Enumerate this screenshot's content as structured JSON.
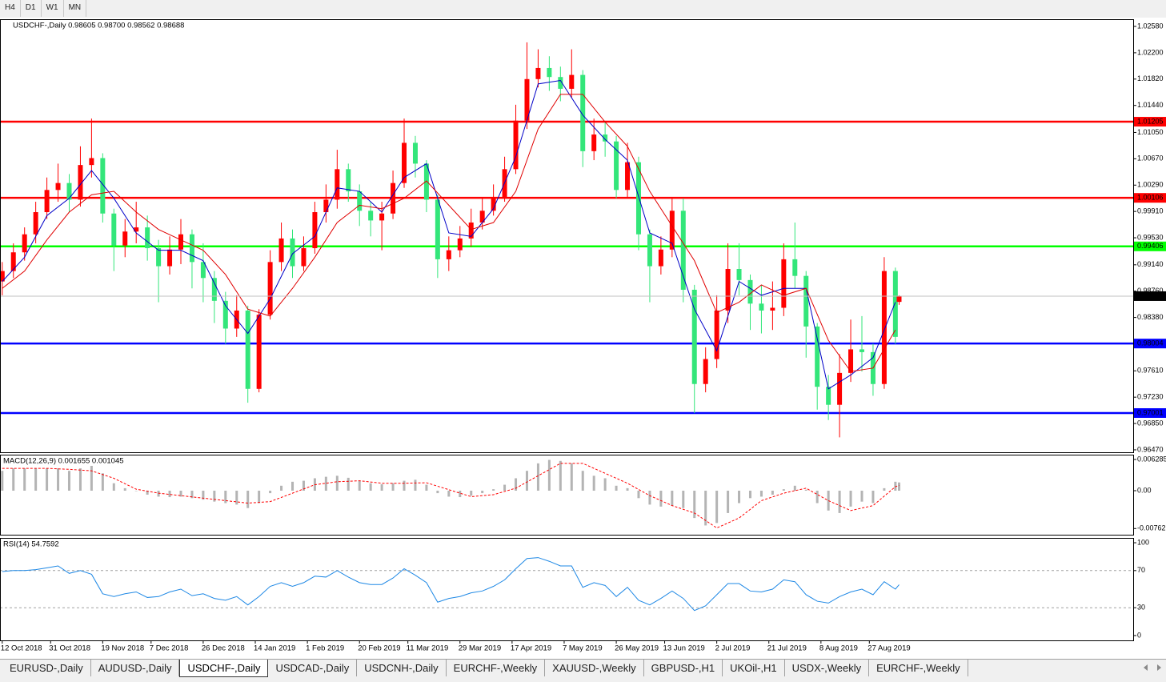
{
  "toolbar": [
    "H4",
    "D1",
    "W1",
    "MN"
  ],
  "tabs": [
    "EURUSD-,Daily",
    "AUDUSD-,Daily",
    "USDCHF-,Daily",
    "USDCAD-,Daily",
    "USDCNH-,Daily",
    "EURCHF-,Weekly",
    "XAUUSD-,Weekly",
    "GBPUSD-,H1",
    "UKOil-,H1",
    "USDX-,Weekly",
    "EURCHF-,Weekly"
  ],
  "active_tab": 2,
  "chart_data": [
    {
      "type": "candlestick",
      "title": "USDCHF-,Daily  0.98605 0.98700 0.98562 0.98688",
      "xlim": [
        -0.6,
        303.9
      ],
      "ylim": [
        0.96435,
        1.02684
      ],
      "yticks": [
        {
          "value": 1.0258,
          "label": "1.02580"
        },
        {
          "value": 1.022,
          "label": "1.02200"
        },
        {
          "value": 1.0182,
          "label": "1.01820"
        },
        {
          "value": 1.0144,
          "label": "1.01440"
        },
        {
          "value": 1.0105,
          "label": "1.01050"
        },
        {
          "value": 1.0067,
          "label": "1.00670"
        },
        {
          "value": 1.0029,
          "label": "1.00290"
        },
        {
          "value": 0.9991,
          "label": "0.99910"
        },
        {
          "value": 0.9953,
          "label": "0.99530"
        },
        {
          "value": 0.9914,
          "label": "0.99140"
        },
        {
          "value": 0.9876,
          "label": "0.98760"
        },
        {
          "value": 0.9838,
          "label": "0.98380"
        },
        {
          "value": 0.9761,
          "label": "0.97610"
        },
        {
          "value": 0.9723,
          "label": "0.97230"
        },
        {
          "value": 0.9685,
          "label": "0.96850"
        },
        {
          "value": 0.9647,
          "label": "0.96470"
        }
      ],
      "up_color": "#ff0000",
      "down_color": "#33e67a",
      "x": [
        0,
        3,
        6,
        9,
        12,
        15,
        18,
        21,
        24,
        27,
        30,
        33,
        36,
        39,
        42,
        45,
        48,
        51,
        54,
        57,
        60,
        63,
        66,
        69,
        72,
        75,
        78,
        81,
        84,
        87,
        90,
        93,
        96,
        99,
        102,
        105,
        108,
        111,
        114,
        117,
        120,
        123,
        126,
        129,
        132,
        135,
        138,
        141,
        144,
        147,
        150,
        153,
        156,
        159,
        162,
        165,
        168,
        171,
        174,
        177,
        180,
        183,
        186,
        189,
        192,
        195,
        198,
        201,
        204,
        207,
        210,
        213,
        216,
        219,
        222,
        225,
        228,
        231,
        234,
        237,
        240,
        241
      ],
      "open": [
        0.989,
        0.9905,
        0.9932,
        0.9958,
        0.999,
        1.0022,
        1.0032,
        1.0008,
        1.0058,
        1.0068,
        0.9988,
        0.9942,
        0.9962,
        0.9968,
        0.9938,
        0.9912,
        0.9936,
        0.9958,
        0.9918,
        0.9895,
        0.9862,
        0.9822,
        0.9848,
        0.9735,
        0.9842,
        0.9918,
        0.9952,
        0.9912,
        0.9938,
        0.999,
        1.0008,
        1.0052,
        1.002,
        0.9992,
        0.9978,
        0.9988,
        1.0032,
        1.009,
        1.006,
        1.0008,
        0.9922,
        0.9935,
        0.9952,
        0.9975,
        0.9992,
        1.0012,
        1.0052,
        1.0122,
        1.0182,
        1.0198,
        1.0185,
        1.0168,
        1.0188,
        1.0078,
        1.0102,
        1.0092,
        1.0022,
        1.0062,
        0.9958,
        0.9912,
        0.9936,
        0.9992,
        0.9878,
        0.9742,
        0.9778,
        0.9848,
        0.9908,
        0.9892,
        0.9858,
        0.9848,
        0.9852,
        0.9922,
        0.9898,
        0.9825,
        0.9738,
        0.9712,
        0.9758,
        0.9792,
        0.9788,
        0.9742,
        0.9905,
        0.98605
      ],
      "high": [
        0.9918,
        0.9945,
        0.9968,
        1.0005,
        1.004,
        1.006,
        1.0045,
        1.0085,
        1.0125,
        1.0075,
        0.9995,
        0.998,
        1.0005,
        0.9985,
        0.995,
        0.9955,
        0.998,
        0.9965,
        0.9945,
        0.9905,
        0.9875,
        0.987,
        0.9855,
        0.985,
        0.9935,
        0.9975,
        0.9965,
        0.9955,
        1.0005,
        1.003,
        1.008,
        1.006,
        1.003,
        1.0005,
        1.0005,
        1.005,
        1.0125,
        1.01,
        1.0065,
        1.0015,
        0.9955,
        0.997,
        0.9995,
        1.001,
        1.003,
        1.007,
        1.0145,
        1.0235,
        1.0225,
        1.0215,
        1.02,
        1.0225,
        1.0195,
        1.0125,
        1.012,
        1.01,
        1.009,
        1.007,
        0.9965,
        0.9955,
        1.001,
        1.001,
        0.9885,
        0.9795,
        0.987,
        0.9945,
        0.9945,
        0.99,
        0.9885,
        0.989,
        0.9945,
        0.9975,
        0.9905,
        0.983,
        0.9755,
        0.9785,
        0.9835,
        0.984,
        0.98,
        0.9925,
        0.991,
        0.987
      ],
      "low": [
        0.987,
        0.9895,
        0.992,
        0.9945,
        0.998,
        1.0005,
        0.999,
        0.9998,
        1.004,
        0.9975,
        0.9905,
        0.9925,
        0.9945,
        0.992,
        0.986,
        0.99,
        0.9915,
        0.988,
        0.986,
        0.983,
        0.98,
        0.981,
        0.9715,
        0.973,
        0.9835,
        0.9905,
        0.9895,
        0.9905,
        0.993,
        0.9975,
        0.9995,
        1.0005,
        0.997,
        0.9955,
        0.9935,
        0.998,
        1.0025,
        1.004,
        0.999,
        0.9895,
        0.9905,
        0.9925,
        0.994,
        0.9965,
        0.9985,
        1.0005,
        1.0045,
        1.011,
        1.017,
        1.0165,
        1.015,
        1.0155,
        1.0055,
        1.0065,
        1.007,
        1.001,
        1.001,
        0.9935,
        0.986,
        0.99,
        0.9925,
        0.986,
        0.97,
        0.973,
        0.9765,
        0.983,
        0.987,
        0.982,
        0.9815,
        0.982,
        0.984,
        0.988,
        0.978,
        0.9705,
        0.969,
        0.9665,
        0.9745,
        0.976,
        0.9725,
        0.9735,
        0.98,
        0.98562
      ],
      "close": [
        0.9905,
        0.9932,
        0.9958,
        0.999,
        1.0022,
        1.0032,
        1.0008,
        1.0058,
        1.0068,
        0.9988,
        0.9942,
        0.9962,
        0.9968,
        0.9938,
        0.9912,
        0.9936,
        0.9958,
        0.9918,
        0.9895,
        0.9862,
        0.9822,
        0.9848,
        0.9735,
        0.9842,
        0.9918,
        0.9952,
        0.9912,
        0.9938,
        0.999,
        1.0008,
        1.0052,
        1.002,
        0.9992,
        0.9978,
        0.9988,
        1.0032,
        1.009,
        1.006,
        1.0008,
        0.9922,
        0.9935,
        0.9952,
        0.9975,
        0.9992,
        1.0012,
        1.0052,
        1.0122,
        1.0182,
        1.0198,
        1.0185,
        1.0168,
        1.0188,
        1.0078,
        1.0102,
        1.0092,
        1.0022,
        1.0062,
        0.9958,
        0.9912,
        0.9936,
        0.9992,
        0.9878,
        0.9742,
        0.9778,
        0.9848,
        0.9908,
        0.9892,
        0.9858,
        0.9848,
        0.9852,
        0.9922,
        0.9898,
        0.9825,
        0.9738,
        0.9712,
        0.9758,
        0.9792,
        0.9788,
        0.9742,
        0.9905,
        0.981,
        0.98688
      ],
      "lines": [
        {
          "color": "#0000c8",
          "x": [
            0,
            6,
            12,
            18,
            24,
            30,
            36,
            42,
            48,
            54,
            60,
            66,
            72,
            78,
            84,
            90,
            96,
            102,
            108,
            114,
            120,
            126,
            132,
            138,
            144,
            150,
            156,
            162,
            168,
            174,
            180,
            186,
            192,
            198,
            204,
            210,
            216,
            222,
            228,
            234,
            240
          ],
          "values": [
            0.989,
            0.9925,
            0.9985,
            1.001,
            1.005,
            1.001,
            0.996,
            0.9935,
            0.9935,
            0.992,
            0.9855,
            0.9815,
            0.9865,
            0.993,
            0.9955,
            1.0025,
            1.002,
            0.999,
            1.004,
            1.006,
            0.996,
            0.9955,
            0.9995,
            1.007,
            1.0175,
            1.018,
            1.013,
            1.0095,
            1.0065,
            0.996,
            0.9945,
            0.985,
            0.979,
            0.989,
            0.987,
            0.988,
            0.988,
            0.9735,
            0.9755,
            0.978,
            0.986
          ]
        },
        {
          "color": "#e00000",
          "x": [
            0,
            6,
            12,
            18,
            24,
            30,
            36,
            42,
            48,
            54,
            60,
            66,
            72,
            78,
            84,
            90,
            96,
            102,
            108,
            114,
            120,
            126,
            132,
            138,
            144,
            150,
            156,
            162,
            168,
            174,
            180,
            186,
            192,
            198,
            204,
            210,
            216,
            222,
            228,
            234,
            240
          ],
          "values": [
            0.988,
            0.9905,
            0.995,
            0.999,
            1.0015,
            1.002,
            0.999,
            0.9965,
            0.995,
            0.9935,
            0.99,
            0.985,
            0.984,
            0.988,
            0.9925,
            0.9975,
            1.0,
            0.9995,
            1.001,
            1.0035,
            1.0,
            0.9965,
            0.9975,
            1.002,
            1.011,
            1.016,
            1.016,
            1.012,
            1.0085,
            1.002,
            0.997,
            0.992,
            0.9845,
            0.986,
            0.9885,
            0.987,
            0.988,
            0.9805,
            0.976,
            0.9765,
            0.982
          ]
        }
      ],
      "hlines": [
        {
          "value": 1.01205,
          "color": "#ff0000"
        },
        {
          "value": 1.00106,
          "color": "#ff0000"
        },
        {
          "value": 0.99406,
          "color": "#00ff00"
        },
        {
          "value": 0.98004,
          "color": "#0000ff"
        },
        {
          "value": 0.97001,
          "color": "#0000ff"
        }
      ]
    },
    {
      "type": "macd",
      "title": "MACD(12,26,9) 0.001655 0.001045",
      "xlim": [
        -0.6,
        303.9
      ],
      "ylim": [
        -0.008864,
        0.007252
      ],
      "yticks": [
        0.006285,
        {
          "value": 0,
          "label": "0.00"
        },
        -0.00762
      ],
      "histogram_color": "#b4b4b4",
      "signal_color": "#ff0000",
      "x": [
        0,
        3,
        6,
        9,
        12,
        15,
        18,
        21,
        24,
        27,
        30,
        33,
        36,
        39,
        42,
        45,
        48,
        51,
        54,
        57,
        60,
        63,
        66,
        69,
        72,
        75,
        78,
        81,
        84,
        87,
        90,
        93,
        96,
        99,
        102,
        105,
        108,
        111,
        114,
        117,
        120,
        123,
        126,
        129,
        132,
        135,
        138,
        141,
        144,
        147,
        150,
        153,
        156,
        159,
        162,
        165,
        168,
        171,
        174,
        177,
        180,
        183,
        186,
        189,
        192,
        195,
        198,
        201,
        204,
        207,
        210,
        213,
        216,
        219,
        222,
        225,
        228,
        231,
        234,
        237,
        240,
        241
      ],
      "histogram": [
        0.004,
        0.0045,
        0.0045,
        0.0045,
        0.0045,
        0.0045,
        0.004,
        0.0045,
        0.005,
        0.0035,
        0.0015,
        0.0005,
        0,
        -0.0008,
        -0.0012,
        -0.0013,
        -0.0012,
        -0.0015,
        -0.0018,
        -0.0022,
        -0.0025,
        -0.0028,
        -0.0035,
        -0.0025,
        -0.0005,
        0.001,
        0.0018,
        0.002,
        0.0025,
        0.0028,
        0.003,
        0.0026,
        0.002,
        0.0015,
        0.0013,
        0.0015,
        0.002,
        0.0022,
        0.0012,
        -0.0005,
        -0.0012,
        -0.0013,
        -0.001,
        -0.0005,
        0.0003,
        0.0012,
        0.0025,
        0.004,
        0.0055,
        0.0062,
        0.006,
        0.0055,
        0.004,
        0.003,
        0.0025,
        0.001,
        0.0005,
        -0.0015,
        -0.0028,
        -0.0032,
        -0.003,
        -0.0035,
        -0.0055,
        -0.007,
        -0.0065,
        -0.0045,
        -0.0025,
        -0.0015,
        -0.0012,
        -0.0008,
        0.0003,
        0.001,
        0.0002,
        -0.0025,
        -0.004,
        -0.0045,
        -0.0032,
        -0.0022,
        -0.0025,
        0.0005,
        0.0018,
        0.001655
      ],
      "signal_x": [
        0,
        6,
        12,
        18,
        24,
        30,
        36,
        42,
        48,
        54,
        60,
        66,
        72,
        78,
        84,
        90,
        96,
        102,
        108,
        114,
        120,
        126,
        132,
        138,
        144,
        150,
        156,
        162,
        168,
        174,
        180,
        186,
        192,
        198,
        204,
        210,
        216,
        222,
        228,
        234,
        240,
        241
      ],
      "signal": [
        0.0045,
        0.0045,
        0.0045,
        0.0043,
        0.004,
        0.0025,
        0.0003,
        -0.0005,
        -0.001,
        -0.0015,
        -0.002,
        -0.0025,
        -0.0022,
        -0.0005,
        0.0012,
        0.0018,
        0.002,
        0.0015,
        0.0015,
        0.0016,
        0.0002,
        -0.0012,
        -0.0008,
        0.0005,
        0.003,
        0.0055,
        0.0055,
        0.0035,
        0.0015,
        -0.001,
        -0.003,
        -0.0045,
        -0.0075,
        -0.0055,
        -0.002,
        -0.0005,
        0.0005,
        -0.002,
        -0.004,
        -0.003,
        0.0008,
        0.001045
      ]
    },
    {
      "type": "line",
      "title": "RSI(14) 54.7592",
      "xlim": [
        -0.6,
        303.9
      ],
      "ylim": [
        -5.2,
        105.2
      ],
      "yticks": [
        100,
        70,
        30,
        0
      ],
      "levels": [
        70,
        30
      ],
      "color": "#1e88e5",
      "x": [
        0,
        3,
        6,
        9,
        12,
        15,
        18,
        21,
        24,
        27,
        30,
        33,
        36,
        39,
        42,
        45,
        48,
        51,
        54,
        57,
        60,
        63,
        66,
        69,
        72,
        75,
        78,
        81,
        84,
        87,
        90,
        93,
        96,
        99,
        102,
        105,
        108,
        111,
        114,
        117,
        120,
        123,
        126,
        129,
        132,
        135,
        138,
        141,
        144,
        147,
        150,
        153,
        156,
        159,
        162,
        165,
        168,
        171,
        174,
        177,
        180,
        183,
        186,
        189,
        192,
        195,
        198,
        201,
        204,
        207,
        210,
        213,
        216,
        219,
        222,
        225,
        228,
        231,
        234,
        237,
        240,
        241
      ],
      "values": [
        69,
        70,
        70,
        71,
        73,
        75,
        67,
        70,
        66,
        45,
        42,
        45,
        47,
        41,
        42,
        47,
        50,
        43,
        45,
        40,
        38,
        42,
        33,
        42,
        53,
        57,
        53,
        57,
        64,
        63,
        70,
        63,
        57,
        55,
        55,
        62,
        72,
        65,
        57,
        36,
        40,
        42,
        46,
        48,
        53,
        60,
        72,
        83,
        84,
        80,
        75,
        75,
        52,
        57,
        54,
        42,
        52,
        38,
        33,
        40,
        48,
        40,
        27,
        32,
        44,
        56,
        56,
        48,
        47,
        50,
        60,
        58,
        44,
        37,
        35,
        42,
        47,
        50,
        44,
        58,
        50,
        54.7592
      ],
      "xticks": [
        {
          "value": 0,
          "label": "12 Oct 2018"
        },
        {
          "value": 13,
          "label": "31 Oct 2018"
        },
        {
          "value": 27,
          "label": "19 Nov 2018"
        },
        {
          "value": 40,
          "label": "7 Dec 2018"
        },
        {
          "value": 54,
          "label": "26 Dec 2018"
        },
        {
          "value": 68,
          "label": "14 Jan 2019"
        },
        {
          "value": 82,
          "label": "1 Feb 2019"
        },
        {
          "value": 96,
          "label": "20 Feb 2019"
        },
        {
          "value": 109,
          "label": "11 Mar 2019"
        },
        {
          "value": 123,
          "label": "29 Mar 2019"
        },
        {
          "value": 137,
          "label": "17 Apr 2019"
        },
        {
          "value": 151,
          "label": "7 May 2019"
        },
        {
          "value": 165,
          "label": "26 May 2019"
        },
        {
          "value": 178,
          "label": "13 Jun 2019"
        },
        {
          "value": 192,
          "label": "2 Jul 2019"
        },
        {
          "value": 206,
          "label": "21 Jul 2019"
        },
        {
          "value": 220,
          "label": "8 Aug 2019"
        },
        {
          "value": 233,
          "label": "27 Aug 2019"
        }
      ]
    }
  ]
}
